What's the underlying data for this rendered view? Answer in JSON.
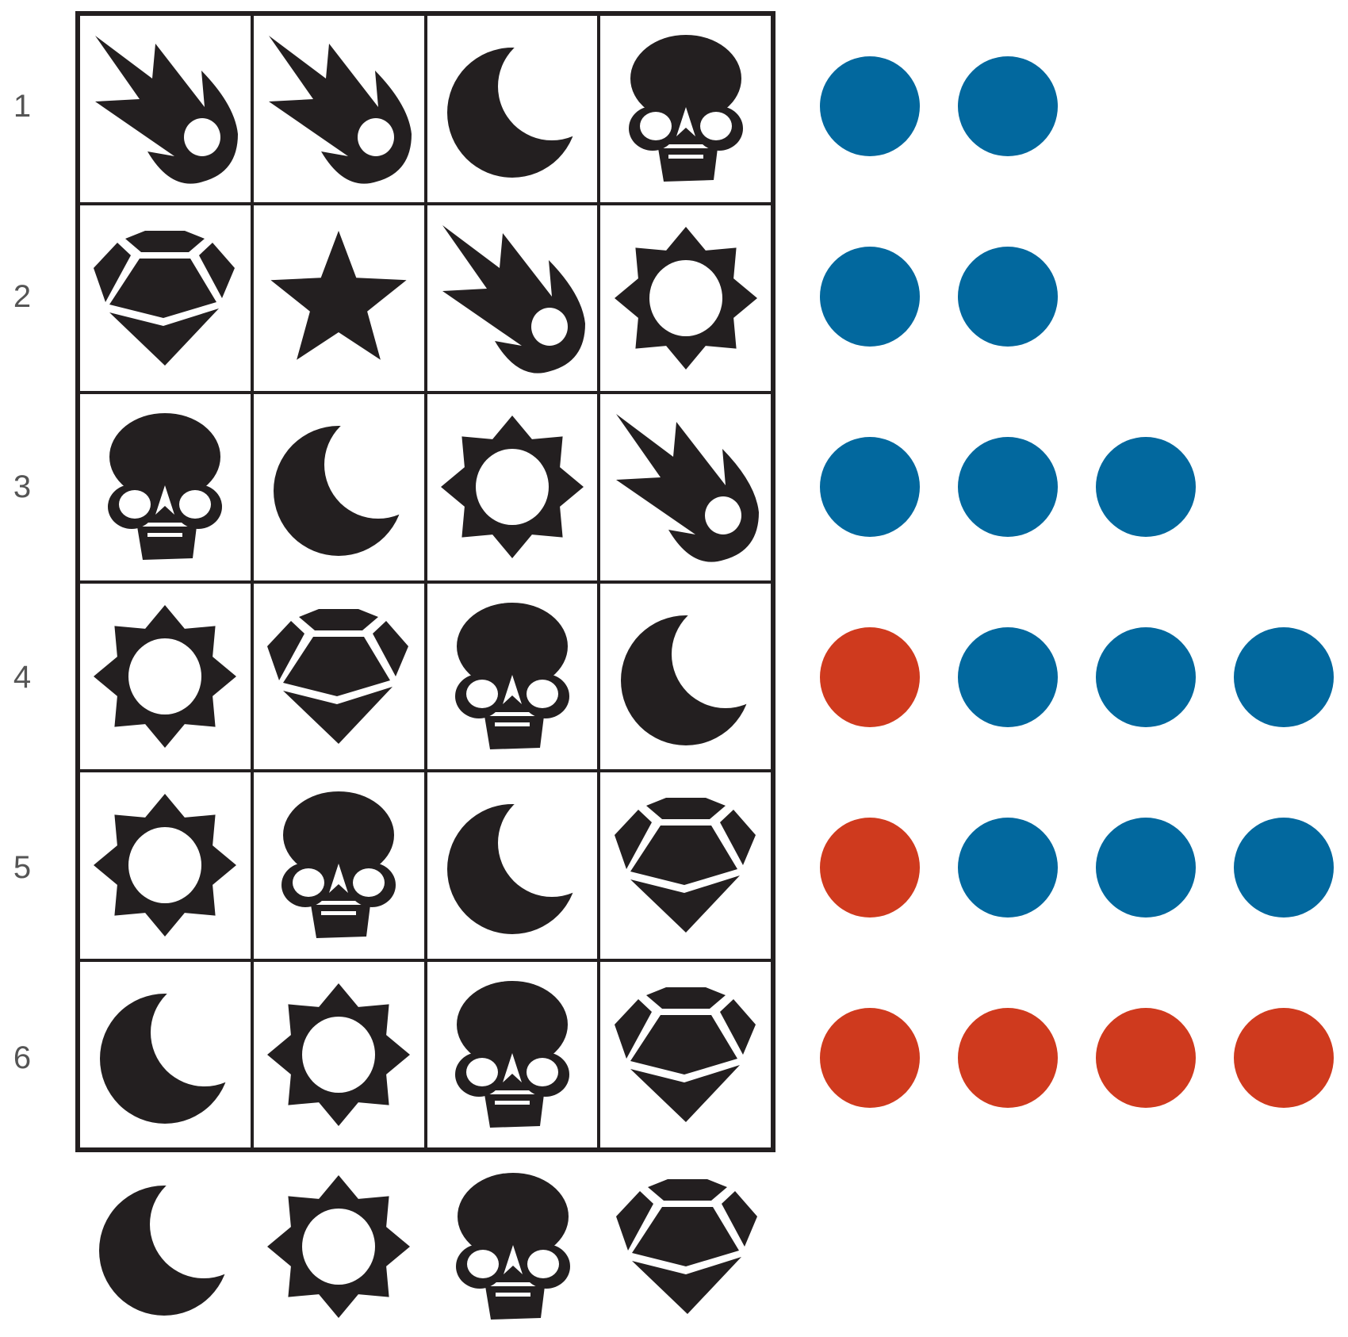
{
  "colors": {
    "ink": "#231f20",
    "exact": "#cf3a1e",
    "partial": "#02689e"
  },
  "rows": [
    {
      "label": "1",
      "guess": [
        "comet-icon",
        "comet-icon",
        "moon-icon",
        "skull-icon"
      ],
      "exact": 0,
      "partial": 2
    },
    {
      "label": "2",
      "guess": [
        "gem-icon",
        "star-icon",
        "comet-icon",
        "sun-icon"
      ],
      "exact": 0,
      "partial": 2
    },
    {
      "label": "3",
      "guess": [
        "skull-icon",
        "moon-icon",
        "sun-icon",
        "comet-icon"
      ],
      "exact": 0,
      "partial": 3
    },
    {
      "label": "4",
      "guess": [
        "sun-icon",
        "gem-icon",
        "skull-icon",
        "moon-icon"
      ],
      "exact": 1,
      "partial": 3
    },
    {
      "label": "5",
      "guess": [
        "sun-icon",
        "skull-icon",
        "moon-icon",
        "gem-icon"
      ],
      "exact": 1,
      "partial": 3
    },
    {
      "label": "6",
      "guess": [
        "moon-icon",
        "sun-icon",
        "skull-icon",
        "gem-icon"
      ],
      "exact": 4,
      "partial": 0
    }
  ],
  "answer": [
    "moon-icon",
    "sun-icon",
    "skull-icon",
    "gem-icon"
  ]
}
